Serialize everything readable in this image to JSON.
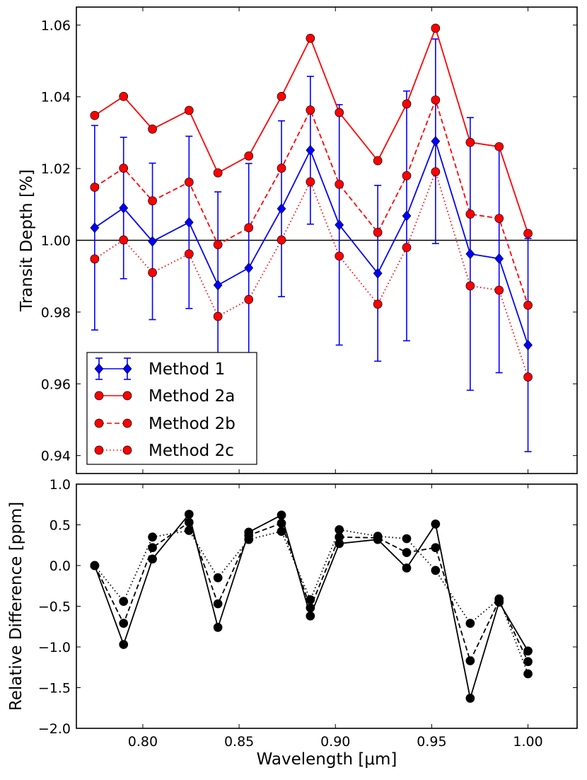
{
  "chart_data": [
    {
      "type": "line",
      "panel": "top",
      "title": "",
      "xlabel": "",
      "ylabel": "Transit Depth [%]",
      "xlim": [
        0.7655,
        1.0255
      ],
      "ylim": [
        0.935,
        1.065
      ],
      "yticks": [
        0.94,
        0.96,
        0.98,
        1.0,
        1.02,
        1.04,
        1.06
      ],
      "ytick_labels": [
        "0.94",
        "0.96",
        "0.98",
        "1.00",
        "1.02",
        "1.04",
        "1.06"
      ],
      "xticks": [
        0.8,
        0.85,
        0.9,
        0.95,
        1.0
      ],
      "reference_line": 1.0,
      "x": [
        0.775,
        0.79,
        0.805,
        0.824,
        0.839,
        0.855,
        0.872,
        0.887,
        0.902,
        0.922,
        0.937,
        0.952,
        0.97,
        0.985,
        1.0
      ],
      "series": [
        {
          "name": "Method 1",
          "color": "#0000ff",
          "linestyle": "solid",
          "marker": "diamond",
          "values": [
            1.0035,
            1.009,
            0.9997,
            1.005,
            0.9875,
            0.9923,
            1.0088,
            1.0251,
            1.0043,
            0.9908,
            1.0068,
            1.0276,
            0.9962,
            0.9949,
            0.9708
          ],
          "errors": [
            0.0285,
            0.0197,
            0.0218,
            0.024,
            0.026,
            0.0291,
            0.0245,
            0.0206,
            0.0335,
            0.0245,
            0.0348,
            0.0285,
            0.038,
            0.0318,
            0.0297
          ]
        },
        {
          "name": "Method 2a",
          "color": "#ff0000",
          "linestyle": "solid",
          "marker": "circle",
          "values": [
            1.0348,
            1.0401,
            1.031,
            1.0362,
            1.0188,
            1.0235,
            1.0401,
            1.0563,
            1.0356,
            1.0222,
            1.038,
            1.0591,
            1.0273,
            1.0261,
            1.0019
          ]
        },
        {
          "name": "Method 2b",
          "color": "#ff0000",
          "linestyle": "dashed",
          "marker": "circle",
          "values": [
            1.0148,
            1.0201,
            1.011,
            1.0162,
            0.9988,
            1.0035,
            1.0201,
            1.0363,
            1.0156,
            1.0022,
            1.018,
            1.0391,
            1.0073,
            1.0061,
            0.9819
          ]
        },
        {
          "name": "Method 2c",
          "color": "#ff0000",
          "linestyle": "dotted",
          "marker": "circle",
          "values": [
            0.9948,
            1.0001,
            0.991,
            0.9962,
            0.9788,
            0.9835,
            1.0001,
            1.0163,
            0.9956,
            0.9822,
            0.998,
            1.0191,
            0.9873,
            0.9861,
            0.9619
          ]
        }
      ],
      "legend": {
        "position": "bottom-left",
        "entries": [
          "Method 1",
          "Method 2a",
          "Method 2b",
          "Method 2c"
        ]
      }
    },
    {
      "type": "line",
      "panel": "bottom",
      "title": "",
      "xlabel": "Wavelength [μm]",
      "ylabel": "Relative Difference [ppm]",
      "xlim": [
        0.7655,
        1.0255
      ],
      "ylim": [
        -2.0,
        1.0
      ],
      "yticks": [
        -2.0,
        -1.5,
        -1.0,
        -0.5,
        0.0,
        0.5,
        1.0
      ],
      "ytick_labels": [
        "−2.0",
        "−1.5",
        "−1.0",
        "−0.5",
        "0.0",
        "0.5",
        "1.0"
      ],
      "xticks": [
        0.8,
        0.85,
        0.9,
        0.95,
        1.0
      ],
      "xtick_labels": [
        "0.80",
        "0.85",
        "0.90",
        "0.95",
        "1.00"
      ],
      "x": [
        0.775,
        0.79,
        0.805,
        0.824,
        0.839,
        0.855,
        0.872,
        0.887,
        0.902,
        0.922,
        0.937,
        0.952,
        0.97,
        0.985,
        1.0
      ],
      "series": [
        {
          "name": "solid",
          "color": "#000000",
          "linestyle": "solid",
          "marker": "circle",
          "values": [
            0.0,
            -0.97,
            0.08,
            0.63,
            -0.76,
            0.41,
            0.62,
            -0.62,
            0.27,
            0.32,
            -0.03,
            0.51,
            -1.63,
            -0.45,
            -1.05
          ]
        },
        {
          "name": "dashed",
          "color": "#000000",
          "linestyle": "dashed",
          "marker": "circle",
          "values": [
            0.0,
            -0.71,
            0.22,
            0.53,
            -0.47,
            0.37,
            0.52,
            -0.52,
            0.35,
            0.34,
            0.16,
            0.22,
            -1.17,
            -0.43,
            -1.18
          ]
        },
        {
          "name": "dotted",
          "color": "#000000",
          "linestyle": "dotted",
          "marker": "circle",
          "values": [
            0.0,
            -0.44,
            0.35,
            0.43,
            -0.15,
            0.32,
            0.42,
            -0.42,
            0.44,
            0.36,
            0.33,
            -0.06,
            -0.71,
            -0.41,
            -1.33
          ]
        }
      ]
    }
  ]
}
